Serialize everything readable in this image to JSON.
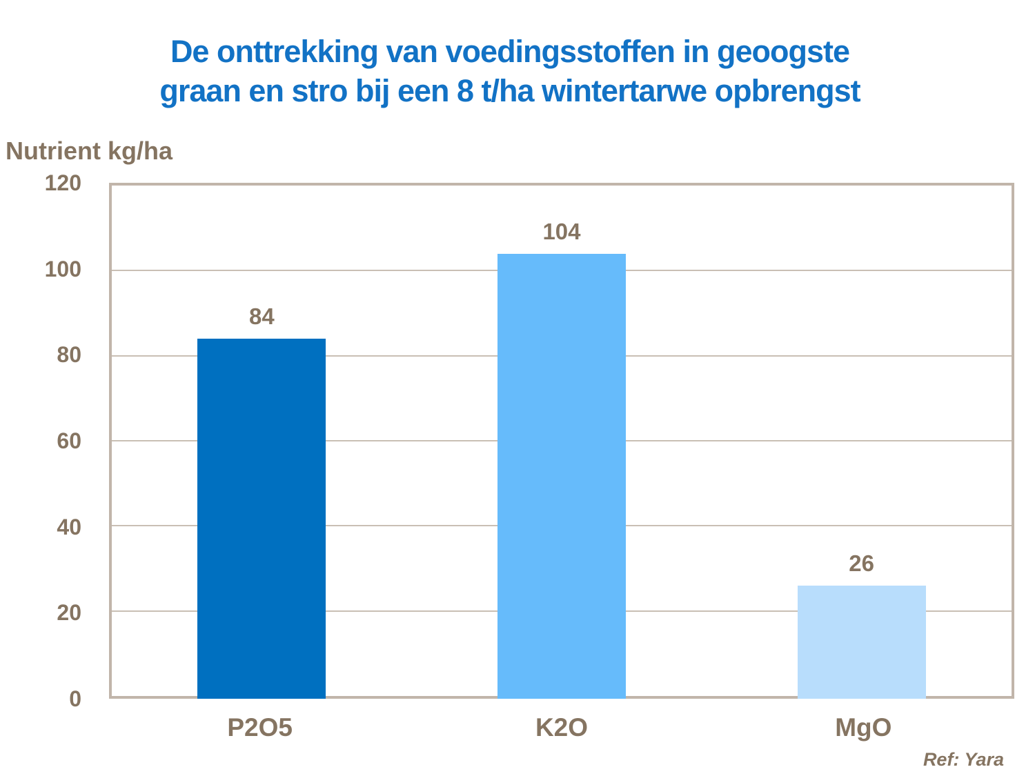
{
  "title": {
    "line1": "De onttrekking van voedingsstoffen in geoogste",
    "line2": "graan en stro bij een 8 t/ha wintertarwe opbrengst"
  },
  "footer": {
    "ref": "Ref: Yara"
  },
  "colors": {
    "title_color": "#1272C5",
    "text_color": "#857461",
    "border_color": "#C1B5AA",
    "grid_color": "#C9BFB4",
    "bar_colors": [
      "#0070C0",
      "#66BBFB",
      "#B8DDFC"
    ]
  },
  "chart_data": {
    "type": "bar",
    "title": "De onttrekking van voedingsstoffen in geoogste graan en stro bij een 8 t/ha wintertarwe opbrengst",
    "categories": [
      "P2O5",
      "K2O",
      "MgO"
    ],
    "values": [
      84,
      104,
      26
    ],
    "data_labels": [
      "84",
      "104",
      "26"
    ],
    "xlabel": "",
    "ylabel": "Nutrient kg/ha",
    "ylim": [
      0,
      120
    ],
    "yticks": [
      0,
      20,
      40,
      60,
      80,
      100,
      120
    ],
    "grid": true,
    "legend": false
  }
}
